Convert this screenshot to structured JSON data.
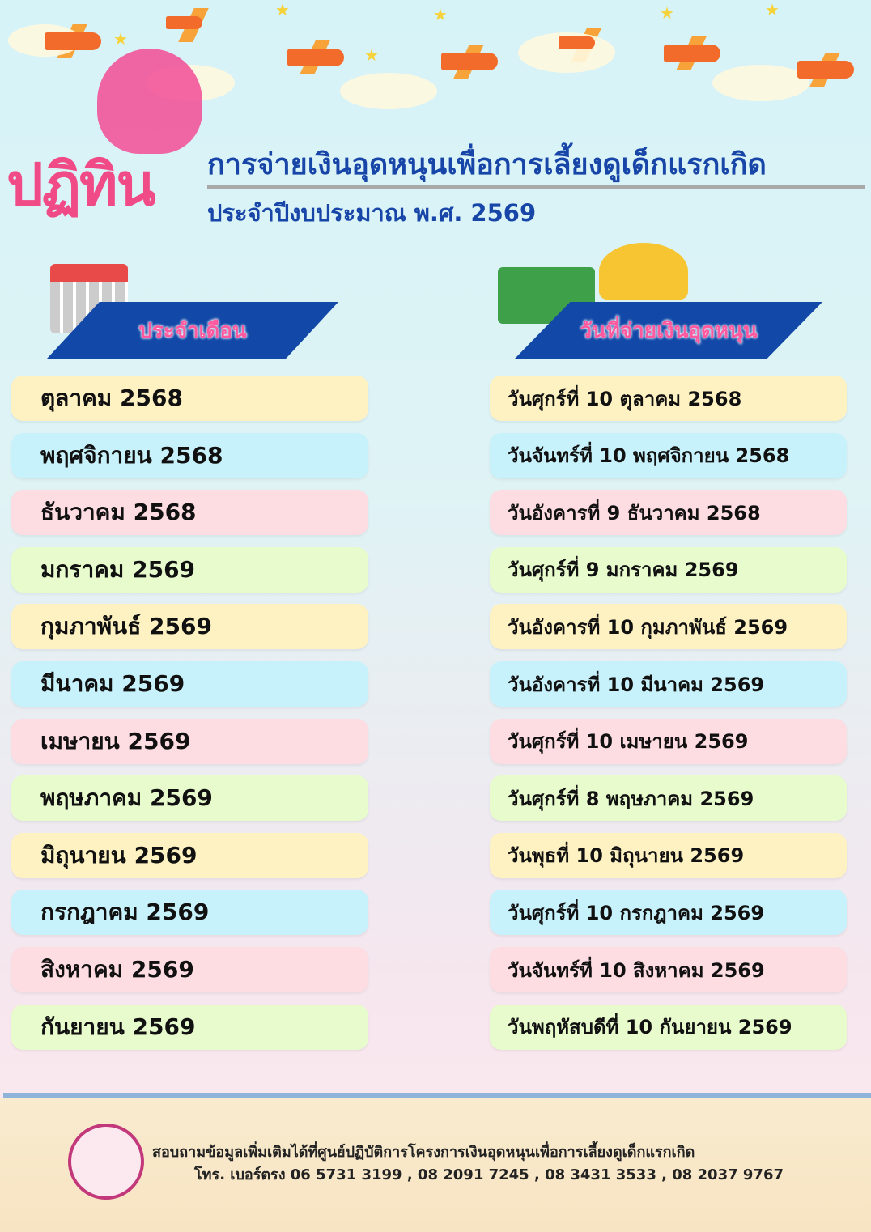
{
  "header": {
    "badge": "ปฏิทิน",
    "title": "การจ่ายเงินอุดหนุนเพื่อการเลี้ยงดูเด็กแรกเกิด",
    "subtitle": "ประจำปีงบประมาณ พ.ศ. 2569"
  },
  "columns": {
    "month": "ประจำเดือน",
    "payday": "วันที่จ่ายเงินอุดหนุน"
  },
  "colors": {
    "yellow": "#fff2c2",
    "cyan": "#c8f2fb",
    "pink": "#fddce2",
    "green": "#e8fbcd",
    "accent": "#1249a8",
    "brand": "#f04a87"
  },
  "rows": [
    {
      "month": "ตุลาคม 2568",
      "date": "วันศุกร์ที่ 10 ตุลาคม 2568",
      "color": "#fff2c2"
    },
    {
      "month": "พฤศจิกายน 2568",
      "date": "วันจันทร์ที่ 10 พฤศจิกายน 2568",
      "color": "#c8f2fb"
    },
    {
      "month": "ธันวาคม 2568",
      "date": "วันอังคารที่ 9 ธันวาคม 2568",
      "color": "#fddce2"
    },
    {
      "month": "มกราคม 2569",
      "date": "วันศุกร์ที่ 9 มกราคม 2569",
      "color": "#e8fbcd"
    },
    {
      "month": "กุมภาพันธ์ 2569",
      "date": "วันอังคารที่ 10 กุมภาพันธ์ 2569",
      "color": "#fff2c2"
    },
    {
      "month": "มีนาคม 2569",
      "date": "วันอังคารที่ 10 มีนาคม 2569",
      "color": "#c8f2fb"
    },
    {
      "month": "เมษายน 2569",
      "date": "วันศุกร์ที่ 10 เมษายน 2569",
      "color": "#fddce2"
    },
    {
      "month": "พฤษภาคม 2569",
      "date": "วันศุกร์ที่ 8 พฤษภาคม 2569",
      "color": "#e8fbcd"
    },
    {
      "month": "มิถุนายน 2569",
      "date": "วันพุธที่ 10 มิถุนายน 2569",
      "color": "#fff2c2"
    },
    {
      "month": "กรกฎาคม 2569",
      "date": "วันศุกร์ที่ 10 กรกฎาคม 2569",
      "color": "#c8f2fb"
    },
    {
      "month": "สิงหาคม 2569",
      "date": "วันจันทร์ที่ 10 สิงหาคม 2569",
      "color": "#fddce2"
    },
    {
      "month": "กันยายน 2569",
      "date": "วันพฤหัสบดีที่ 10 กันยายน 2569",
      "color": "#e8fbcd"
    }
  ],
  "footer": {
    "line1": "สอบถามข้อมูลเพิ่มเติมได้ที่ศูนย์ปฏิบัติการโครงการเงินอุดหนุนเพื่อการเลี้ยงดูเด็กแรกเกิด",
    "line2": "โทร. เบอร์ตรง 06 5731 3199 , 08 2091 7245 , 08 3431 3533 , 08 2037 9767"
  },
  "icons": [
    "airplane-icon",
    "star-icon",
    "cloud-icon",
    "mother-baby-icon",
    "calendar-icon",
    "money-coins-icon",
    "seal-logo"
  ]
}
